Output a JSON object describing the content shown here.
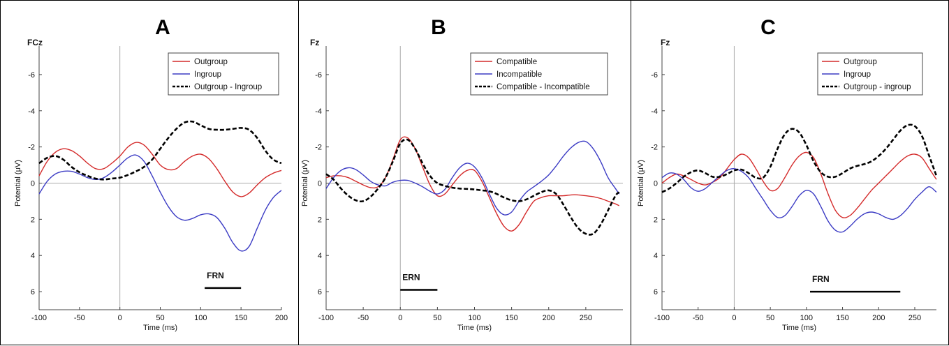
{
  "chart_data": [
    {
      "type": "line",
      "panel": "A",
      "channel": "FCz",
      "xlabel": "Time (ms)",
      "ylabel": "Potential (μV)",
      "xlim": [
        -100,
        200
      ],
      "ylim": [
        7,
        -7
      ],
      "xticks": [
        -100,
        -50,
        0,
        50,
        100,
        150,
        200
      ],
      "yticks": [
        -6,
        -4,
        -2,
        0,
        2,
        4,
        6
      ],
      "legend_position": "top-right",
      "component": {
        "label": "FRN",
        "x": [
          105,
          150
        ],
        "y": 5.8
      },
      "series": [
        {
          "name": "Outgroup",
          "color": "#d42a2a",
          "dash": "",
          "x": [
            -100,
            -90,
            -80,
            -70,
            -60,
            -50,
            -40,
            -30,
            -20,
            -10,
            0,
            10,
            20,
            30,
            40,
            50,
            60,
            70,
            80,
            90,
            100,
            110,
            120,
            130,
            140,
            150,
            160,
            170,
            180,
            190,
            200
          ],
          "y": [
            -0.4,
            -1.2,
            -1.7,
            -1.9,
            -1.8,
            -1.5,
            -1.1,
            -0.8,
            -0.8,
            -1.1,
            -1.5,
            -2.0,
            -2.25,
            -2.1,
            -1.6,
            -1.0,
            -0.75,
            -0.8,
            -1.2,
            -1.5,
            -1.6,
            -1.35,
            -0.8,
            -0.1,
            0.5,
            0.75,
            0.55,
            0.1,
            -0.3,
            -0.55,
            -0.7
          ]
        },
        {
          "name": "Ingroup",
          "color": "#3b3bc4",
          "dash": "",
          "x": [
            -100,
            -90,
            -80,
            -70,
            -60,
            -50,
            -40,
            -30,
            -20,
            -10,
            0,
            10,
            20,
            30,
            40,
            50,
            60,
            70,
            80,
            90,
            100,
            110,
            120,
            130,
            140,
            150,
            160,
            170,
            180,
            190,
            200
          ],
          "y": [
            0.6,
            -0.1,
            -0.5,
            -0.65,
            -0.65,
            -0.5,
            -0.3,
            -0.2,
            -0.3,
            -0.6,
            -1.0,
            -1.4,
            -1.55,
            -1.2,
            -0.4,
            0.5,
            1.3,
            1.85,
            2.05,
            1.95,
            1.75,
            1.7,
            1.9,
            2.5,
            3.3,
            3.75,
            3.5,
            2.5,
            1.5,
            0.8,
            0.4
          ]
        },
        {
          "name": "Outgroup - Ingroup",
          "color": "#000000",
          "dash": "6,3",
          "x": [
            -100,
            -90,
            -80,
            -70,
            -60,
            -50,
            -40,
            -30,
            -20,
            -10,
            0,
            10,
            20,
            30,
            40,
            50,
            60,
            70,
            80,
            90,
            100,
            110,
            120,
            130,
            140,
            150,
            160,
            170,
            180,
            190,
            200
          ],
          "y": [
            -1.1,
            -1.4,
            -1.5,
            -1.3,
            -0.9,
            -0.6,
            -0.4,
            -0.25,
            -0.2,
            -0.25,
            -0.3,
            -0.45,
            -0.65,
            -0.9,
            -1.3,
            -1.9,
            -2.5,
            -3.0,
            -3.35,
            -3.4,
            -3.2,
            -3.0,
            -2.95,
            -2.95,
            -3.0,
            -3.05,
            -2.95,
            -2.5,
            -1.8,
            -1.3,
            -1.1
          ]
        }
      ]
    },
    {
      "type": "line",
      "panel": "B",
      "channel": "Fz",
      "xlabel": "Time (ms)",
      "ylabel": "Potential (μV)",
      "xlim": [
        -100,
        300
      ],
      "ylim": [
        7,
        -7
      ],
      "xticks": [
        -100,
        -50,
        0,
        50,
        100,
        150,
        200,
        250
      ],
      "yticks": [
        -6,
        -4,
        -2,
        0,
        2,
        4,
        6
      ],
      "legend_position": "top-right",
      "component": {
        "label": "ERN",
        "x": [
          0,
          50
        ],
        "y": 5.9
      },
      "series": [
        {
          "name": "Compatible",
          "color": "#d42a2a",
          "dash": "",
          "x": [
            -100,
            -90,
            -80,
            -70,
            -60,
            -50,
            -40,
            -30,
            -20,
            -10,
            0,
            10,
            20,
            30,
            40,
            50,
            60,
            70,
            80,
            90,
            100,
            110,
            120,
            130,
            140,
            150,
            160,
            170,
            180,
            190,
            200,
            210,
            220,
            230,
            240,
            250,
            260,
            270,
            280,
            290,
            295
          ],
          "y": [
            -0.3,
            -0.4,
            -0.4,
            -0.3,
            -0.1,
            0.1,
            0.25,
            0.2,
            -0.3,
            -1.3,
            -2.4,
            -2.5,
            -1.9,
            -0.9,
            0.1,
            0.7,
            0.6,
            0.1,
            -0.4,
            -0.7,
            -0.7,
            -0.1,
            0.8,
            1.7,
            2.4,
            2.65,
            2.3,
            1.6,
            1.0,
            0.8,
            0.7,
            0.7,
            0.7,
            0.65,
            0.65,
            0.7,
            0.75,
            0.85,
            1.0,
            1.15,
            1.25
          ]
        },
        {
          "name": "Incompatible",
          "color": "#3b3bc4",
          "dash": "",
          "x": [
            -100,
            -90,
            -80,
            -70,
            -60,
            -50,
            -40,
            -30,
            -20,
            -10,
            0,
            10,
            20,
            30,
            40,
            50,
            60,
            70,
            80,
            90,
            100,
            110,
            120,
            130,
            140,
            150,
            160,
            170,
            180,
            190,
            200,
            210,
            220,
            230,
            240,
            250,
            260,
            270,
            280,
            290,
            295
          ],
          "y": [
            0.3,
            -0.3,
            -0.7,
            -0.85,
            -0.75,
            -0.45,
            -0.1,
            0.1,
            0.15,
            -0.05,
            -0.15,
            -0.15,
            0.0,
            0.2,
            0.45,
            0.6,
            0.35,
            -0.3,
            -0.85,
            -1.1,
            -0.9,
            -0.3,
            0.6,
            1.4,
            1.75,
            1.6,
            1.0,
            0.5,
            0.2,
            -0.1,
            -0.45,
            -0.95,
            -1.5,
            -1.95,
            -2.25,
            -2.3,
            -1.9,
            -1.2,
            -0.3,
            0.3,
            0.6
          ]
        },
        {
          "name": "Compatible - Incompatible",
          "color": "#000000",
          "dash": "6,3",
          "x": [
            -100,
            -90,
            -80,
            -70,
            -60,
            -50,
            -40,
            -30,
            -20,
            -10,
            0,
            10,
            20,
            30,
            40,
            50,
            60,
            70,
            80,
            90,
            100,
            110,
            120,
            130,
            140,
            150,
            160,
            170,
            180,
            190,
            200,
            210,
            220,
            230,
            240,
            250,
            260,
            270,
            280,
            290,
            295
          ],
          "y": [
            -0.5,
            -0.2,
            0.3,
            0.7,
            0.95,
            1.0,
            0.75,
            0.3,
            -0.3,
            -1.2,
            -2.2,
            -2.4,
            -1.9,
            -1.1,
            -0.4,
            0.0,
            0.15,
            0.25,
            0.3,
            0.32,
            0.35,
            0.4,
            0.45,
            0.6,
            0.8,
            0.95,
            1.0,
            0.9,
            0.7,
            0.5,
            0.4,
            0.6,
            1.2,
            1.9,
            2.5,
            2.8,
            2.8,
            2.3,
            1.5,
            0.7,
            0.5
          ]
        }
      ]
    },
    {
      "type": "line",
      "panel": "C",
      "channel": "Fz",
      "xlabel": "Time (ms)",
      "ylabel": "Potential (μV)",
      "xlim": [
        -100,
        280
      ],
      "ylim": [
        7,
        -7
      ],
      "xticks": [
        -100,
        -50,
        0,
        50,
        100,
        150,
        200,
        250
      ],
      "yticks": [
        -6,
        -4,
        -2,
        0,
        2,
        4,
        6
      ],
      "legend_position": "top-right",
      "component": {
        "label": "FRN",
        "x": [
          105,
          230
        ],
        "y": 6.0
      },
      "series": [
        {
          "name": "Outgroup",
          "color": "#d42a2a",
          "dash": "",
          "x": [
            -100,
            -90,
            -80,
            -70,
            -60,
            -50,
            -40,
            -30,
            -20,
            -10,
            0,
            10,
            20,
            30,
            40,
            50,
            60,
            70,
            80,
            90,
            100,
            110,
            120,
            130,
            140,
            150,
            160,
            170,
            180,
            190,
            200,
            210,
            220,
            230,
            240,
            250,
            260,
            270,
            280
          ],
          "y": [
            0.0,
            -0.3,
            -0.5,
            -0.4,
            -0.2,
            0.0,
            0.1,
            -0.05,
            -0.3,
            -0.8,
            -1.3,
            -1.6,
            -1.4,
            -0.8,
            -0.1,
            0.4,
            0.3,
            -0.3,
            -1.0,
            -1.5,
            -1.7,
            -1.4,
            -0.5,
            0.6,
            1.5,
            1.9,
            1.8,
            1.4,
            0.9,
            0.4,
            0.0,
            -0.4,
            -0.8,
            -1.2,
            -1.5,
            -1.6,
            -1.4,
            -0.8,
            -0.2
          ]
        },
        {
          "name": "Ingroup",
          "color": "#3b3bc4",
          "dash": "",
          "x": [
            -100,
            -90,
            -80,
            -70,
            -60,
            -50,
            -40,
            -30,
            -20,
            -10,
            0,
            10,
            20,
            30,
            40,
            50,
            60,
            70,
            80,
            90,
            100,
            110,
            120,
            130,
            140,
            150,
            160,
            170,
            180,
            190,
            200,
            210,
            220,
            230,
            240,
            250,
            260,
            270,
            280
          ],
          "y": [
            -0.3,
            -0.55,
            -0.5,
            -0.2,
            0.25,
            0.45,
            0.3,
            -0.05,
            -0.4,
            -0.7,
            -0.8,
            -0.65,
            -0.3,
            0.3,
            0.9,
            1.5,
            1.9,
            1.8,
            1.3,
            0.7,
            0.4,
            0.6,
            1.3,
            2.1,
            2.6,
            2.7,
            2.4,
            2.0,
            1.7,
            1.6,
            1.7,
            1.9,
            2.0,
            1.8,
            1.4,
            0.9,
            0.5,
            0.2,
            0.5
          ]
        },
        {
          "name": "Outgroup - ingroup",
          "color": "#000000",
          "dash": "6,3",
          "x": [
            -100,
            -90,
            -80,
            -70,
            -60,
            -50,
            -40,
            -30,
            -20,
            -10,
            0,
            10,
            20,
            30,
            40,
            50,
            60,
            70,
            80,
            90,
            100,
            110,
            120,
            130,
            140,
            150,
            160,
            170,
            180,
            190,
            200,
            210,
            220,
            230,
            240,
            250,
            260,
            270,
            280
          ],
          "y": [
            0.5,
            0.3,
            0.0,
            -0.35,
            -0.6,
            -0.7,
            -0.55,
            -0.35,
            -0.35,
            -0.5,
            -0.7,
            -0.75,
            -0.55,
            -0.3,
            -0.3,
            -0.9,
            -1.9,
            -2.7,
            -3.0,
            -2.8,
            -2.1,
            -1.2,
            -0.6,
            -0.35,
            -0.35,
            -0.55,
            -0.8,
            -0.95,
            -1.05,
            -1.2,
            -1.5,
            -1.9,
            -2.4,
            -2.9,
            -3.2,
            -3.15,
            -2.6,
            -1.5,
            -0.4
          ]
        }
      ]
    }
  ]
}
